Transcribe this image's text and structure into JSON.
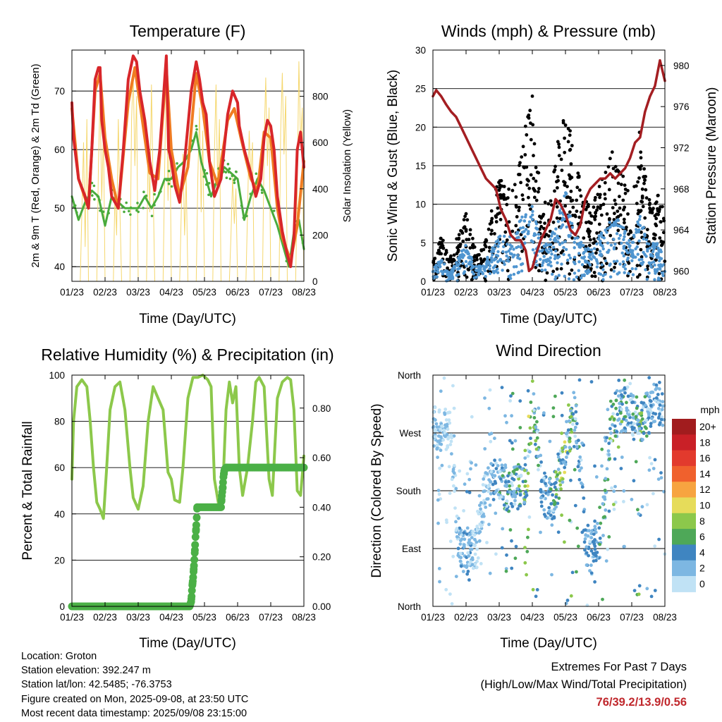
{
  "x_tick_labels": [
    "01/23",
    "02/23",
    "03/23",
    "04/23",
    "05/23",
    "06/23",
    "07/23",
    "08/23"
  ],
  "panels": {
    "temperature": {
      "title": "Temperature (F)",
      "ylabel_left": "2m & 9m T (Red, Orange) & 2m Td (Green)",
      "ylabel_right": "Solar Insolation (Yellow)",
      "xlabel": "Time (Day/UTC)"
    },
    "winds": {
      "title": "Winds (mph) & Pressure (mb)",
      "ylabel_left": "Sonic Wind & Gust (Blue, Black)",
      "ylabel_right": "Station Pressure (Maroon)",
      "xlabel": "Time (Day/UTC)"
    },
    "humidity": {
      "title": "Relative Humidity (%) & Precipitation (in)",
      "ylabel_left": "Percent & Total Rainfall",
      "xlabel": "Time (Day/UTC)"
    },
    "direction": {
      "title": "Wind Direction",
      "ylabel_left": "Direction (Colored By Speed)",
      "xlabel": "Time (Day/UTC)",
      "colorbar_title": "mph",
      "colorbar_labels": [
        "20+",
        "18",
        "16",
        "14",
        "12",
        "10",
        "8",
        "6",
        "4",
        "2",
        "0"
      ]
    }
  },
  "footer": {
    "location": "Location: Groton",
    "elevation": "Station elevation: 392.247 m",
    "latlon": "Station lat/lon: 42.5485; -76.3753",
    "created": "Figure created on Mon, 2025-09-08, at 23:50 UTC",
    "recent": "Most recent data timestamp: 2025/09/08 23:15:00",
    "extremes_title": "Extremes For Past 7 Days",
    "extremes_sub": "(High/Low/Max Wind/Total Precipitation)",
    "extremes_value": "76/39.2/13.9/0.56"
  },
  "colors": {
    "temp_2m": "#d8262a",
    "temp_9m": "#f07c22",
    "dewpoint": "#4aab3c",
    "solar": "#f5d76e",
    "gust": "#000000",
    "wind": "#4f95d0",
    "pressure": "#a41e22",
    "rh": "#8cc84b",
    "precip": "#4bb046",
    "colorbar": [
      "#a11c1e",
      "#c92027",
      "#e23a2d",
      "#f0612d",
      "#f7a440",
      "#e6dc5a",
      "#8cc84b",
      "#4ea858",
      "#3f85c1",
      "#7db7e2",
      "#c0e2f5"
    ]
  },
  "chart_data": [
    {
      "type": "line",
      "title": "Temperature (F)",
      "xlabel": "Time (Day/UTC)",
      "ylabel": "2m & 9m T (Red, Orange) & 2m Td (Green)",
      "ylabel_right": "Solar Insolation (Yellow)",
      "x_range_days": [
        0,
        7
      ],
      "ylim": [
        37.5,
        77
      ],
      "ylim_right": [
        0,
        1000
      ],
      "y_ticks": [
        40,
        50,
        60,
        70
      ],
      "y_ticks_right": [
        0,
        200,
        400,
        600,
        800
      ],
      "series": [
        {
          "name": "2m T",
          "x": [
            0,
            0.05,
            0.2,
            0.4,
            0.5,
            0.6,
            0.7,
            0.8,
            0.85,
            0.9,
            1.0,
            1.1,
            1.2,
            1.4,
            1.55,
            1.7,
            1.85,
            1.95,
            2.05,
            2.2,
            2.35,
            2.5,
            2.65,
            2.75,
            2.85,
            2.92,
            3.0,
            3.1,
            3.25,
            3.4,
            3.6,
            3.75,
            3.85,
            3.95,
            4.05,
            4.15,
            4.3,
            4.5,
            4.7,
            4.85,
            5.0,
            5.05,
            5.2,
            5.4,
            5.55,
            5.7,
            5.8,
            5.9,
            6.0,
            6.1,
            6.2,
            6.35,
            6.5,
            6.6,
            6.7,
            6.8,
            6.9,
            7.0
          ],
          "y": [
            68,
            62,
            55,
            52,
            50,
            60,
            72,
            74,
            74,
            65,
            60,
            57,
            52,
            50,
            60,
            72,
            76,
            75,
            70,
            65,
            58,
            53,
            60,
            68,
            76,
            60,
            58,
            54,
            51,
            58,
            70,
            75,
            72,
            68,
            66,
            58,
            52,
            55,
            66,
            70,
            68,
            64,
            60,
            56,
            52,
            55,
            62,
            65,
            64,
            60,
            52,
            46,
            42,
            40,
            45,
            60,
            63,
            57
          ]
        },
        {
          "name": "9m T",
          "x": [
            0,
            0.2,
            0.5,
            0.7,
            0.85,
            1.0,
            1.2,
            1.4,
            1.7,
            1.9,
            2.1,
            2.35,
            2.6,
            2.85,
            3.0,
            3.25,
            3.5,
            3.75,
            3.95,
            4.15,
            4.4,
            4.7,
            4.9,
            5.1,
            5.4,
            5.6,
            5.8,
            6.0,
            6.2,
            6.35,
            6.6,
            6.8,
            7.0
          ],
          "y": [
            67,
            55,
            50,
            70,
            73,
            62,
            55,
            50,
            68,
            74,
            66,
            56,
            55,
            74,
            60,
            52,
            57,
            73,
            67,
            58,
            54,
            65,
            67,
            62,
            55,
            53,
            63,
            62,
            50,
            45,
            41,
            47,
            58
          ]
        },
        {
          "name": "2m Td",
          "x": [
            0,
            0.1,
            0.2,
            0.4,
            0.6,
            0.8,
            1.0,
            1.2,
            1.4,
            1.6,
            1.8,
            2.0,
            2.2,
            2.4,
            2.6,
            2.8,
            3.0,
            3.2,
            3.4,
            3.6,
            3.75,
            3.9,
            4.0,
            4.2,
            4.4,
            4.6,
            4.8,
            5.0,
            5.2,
            5.4,
            5.6,
            5.8,
            6.0,
            6.2,
            6.4,
            6.55,
            6.7,
            6.85,
            7.0
          ],
          "y": [
            52,
            50,
            48,
            51,
            53,
            52,
            47,
            52,
            51,
            50,
            50,
            50,
            52,
            50,
            52,
            55,
            55,
            57,
            58,
            60,
            63,
            58,
            56,
            52,
            55,
            57,
            56,
            55,
            48,
            52,
            55,
            53,
            50,
            47,
            43,
            40,
            46,
            48,
            43
          ]
        },
        {
          "name": "Solar Insolation",
          "x": [
            0,
            0.25,
            0.3,
            0.35,
            0.4,
            0.45,
            0.5,
            0.75,
            0.8,
            0.85,
            0.9,
            0.95,
            1.0,
            1.25,
            1.3,
            1.35,
            1.4,
            1.45,
            1.5,
            1.75,
            1.8,
            1.85,
            1.9,
            1.95,
            2.0,
            2.25,
            2.3,
            2.35,
            2.4,
            2.45,
            2.5,
            2.75,
            2.8,
            2.85,
            2.9,
            2.95,
            3.0,
            3.25,
            3.3,
            3.35,
            3.4,
            3.45,
            3.5,
            3.75,
            3.8,
            3.85,
            3.9,
            3.95,
            4.0,
            4.25,
            4.3,
            4.35,
            4.4,
            4.45,
            4.5,
            4.75,
            4.8,
            4.85,
            4.9,
            4.95,
            5.0,
            5.25,
            5.3,
            5.35,
            5.4,
            5.45,
            5.5,
            5.75,
            5.8,
            5.85,
            5.9,
            5.95,
            6.0,
            6.25,
            6.3,
            6.35,
            6.4,
            6.45,
            6.5,
            6.75,
            6.8,
            6.85,
            6.9,
            6.95,
            7.0
          ],
          "y": [
            0,
            0,
            300,
            600,
            150,
            700,
            0,
            0,
            500,
            800,
            350,
            650,
            0,
            0,
            400,
            200,
            700,
            300,
            0,
            0,
            700,
            900,
            500,
            800,
            0,
            0,
            600,
            300,
            850,
            400,
            0,
            0,
            500,
            900,
            350,
            750,
            0,
            0,
            300,
            550,
            200,
            450,
            0,
            0,
            450,
            750,
            300,
            650,
            0,
            0,
            550,
            850,
            400,
            700,
            0,
            0,
            200,
            450,
            250,
            400,
            0,
            0,
            300,
            650,
            450,
            600,
            0,
            0,
            600,
            880,
            500,
            750,
            0,
            0,
            650,
            900,
            550,
            800,
            0,
            0,
            400,
            950,
            600,
            750,
            0
          ]
        }
      ]
    },
    {
      "type": "scatter",
      "title": "Winds (mph) & Pressure (mb)",
      "xlabel": "Time (Day/UTC)",
      "ylabel": "Sonic Wind & Gust (Blue, Black)",
      "ylabel_right": "Station Pressure (Maroon)",
      "x_range_days": [
        0,
        7
      ],
      "ylim": [
        0,
        30
      ],
      "ylim_right": [
        959,
        981.5
      ],
      "y_ticks": [
        0,
        5,
        10,
        15,
        20,
        25,
        30
      ],
      "y_ticks_right": [
        960,
        964,
        968,
        972,
        976,
        980
      ],
      "series": [
        {
          "name": "Gust (envelope)",
          "x": [
            0,
            0.25,
            0.5,
            0.75,
            1.0,
            1.25,
            1.5,
            1.75,
            2.0,
            2.25,
            2.5,
            2.75,
            3.0,
            3.25,
            3.5,
            3.75,
            4.0,
            4.25,
            4.5,
            4.75,
            5.0,
            5.25,
            5.5,
            5.75,
            6.0,
            6.25,
            6.5,
            6.75,
            7.0
          ],
          "y": [
            4,
            6,
            3,
            6,
            10,
            5,
            4,
            9,
            14,
            12,
            13,
            20,
            26,
            12,
            10,
            18,
            24,
            17,
            12,
            10,
            12,
            16,
            18,
            14,
            10,
            20,
            11,
            12,
            9
          ]
        },
        {
          "name": "Sonic Wind (envelope)",
          "x": [
            0,
            0.25,
            0.5,
            0.75,
            1.0,
            1.25,
            1.5,
            1.75,
            2.0,
            2.25,
            2.5,
            2.75,
            3.0,
            3.25,
            3.5,
            3.75,
            4.0,
            4.25,
            4.5,
            4.75,
            5.0,
            5.25,
            5.5,
            5.75,
            6.0,
            6.25,
            6.5,
            6.75,
            7.0
          ],
          "y": [
            2,
            3,
            1,
            3,
            5,
            2,
            2,
            4,
            6,
            6,
            7,
            9,
            10,
            5,
            5,
            8,
            12,
            7,
            5,
            4,
            6,
            7,
            9,
            7,
            5,
            9,
            5,
            5,
            4
          ]
        },
        {
          "name": "Station Pressure",
          "x": [
            0,
            0.1,
            0.25,
            0.4,
            0.55,
            0.7,
            0.85,
            1.0,
            1.15,
            1.3,
            1.45,
            1.6,
            1.75,
            1.9,
            2.05,
            2.2,
            2.35,
            2.5,
            2.65,
            2.8,
            2.9,
            3.0,
            3.1,
            3.25,
            3.4,
            3.55,
            3.7,
            3.85,
            4.0,
            4.15,
            4.3,
            4.45,
            4.6,
            4.75,
            4.9,
            5.05,
            5.2,
            5.35,
            5.5,
            5.65,
            5.8,
            5.95,
            6.1,
            6.25,
            6.4,
            6.55,
            6.7,
            6.85,
            7.0
          ],
          "y": [
            977,
            977.6,
            977,
            976.2,
            975.5,
            975,
            974,
            973,
            972,
            971,
            970,
            969,
            968.5,
            968,
            966,
            965,
            963.5,
            963,
            963,
            962,
            960,
            960.3,
            961.5,
            963,
            964,
            965,
            967,
            966.5,
            965.5,
            964,
            963.5,
            964.5,
            967,
            968,
            968.5,
            969,
            969,
            969.5,
            969,
            969.5,
            970,
            971,
            972.5,
            973,
            975.5,
            977,
            978,
            980.5,
            978.5
          ]
        }
      ]
    },
    {
      "type": "line",
      "title": "Relative Humidity (%) & Precipitation (in)",
      "xlabel": "Time (Day/UTC)",
      "ylabel": "Percent & Total Rainfall",
      "x_range_days": [
        0,
        7
      ],
      "ylim": [
        0,
        100
      ],
      "ylim_right": [
        0,
        0.933
      ],
      "y_ticks": [
        0,
        20,
        40,
        60,
        80,
        100
      ],
      "y_ticks_right": [
        0.0,
        0.2,
        0.4,
        0.6,
        0.8
      ],
      "series": [
        {
          "name": "RH",
          "x": [
            0,
            0.05,
            0.15,
            0.3,
            0.45,
            0.55,
            0.65,
            0.75,
            0.85,
            0.95,
            1.05,
            1.15,
            1.3,
            1.45,
            1.6,
            1.75,
            1.85,
            2.0,
            2.15,
            2.3,
            2.45,
            2.6,
            2.75,
            2.9,
            3.0,
            3.1,
            3.25,
            3.35,
            3.5,
            3.65,
            3.8,
            3.95,
            4.1,
            4.2,
            4.3,
            4.45,
            4.55,
            4.65,
            4.75,
            4.85,
            4.95,
            5.05,
            5.15,
            5.3,
            5.45,
            5.55,
            5.65,
            5.8,
            5.95,
            6.05,
            6.2,
            6.35,
            6.5,
            6.6,
            6.7,
            6.8,
            6.9,
            7.0
          ],
          "y": [
            55,
            80,
            95,
            98,
            95,
            80,
            60,
            45,
            42,
            38,
            60,
            85,
            95,
            97,
            85,
            60,
            47,
            42,
            52,
            80,
            95,
            90,
            85,
            58,
            55,
            46,
            45,
            60,
            90,
            99,
            99,
            100,
            98,
            95,
            55,
            42,
            50,
            85,
            97,
            88,
            95,
            60,
            48,
            60,
            80,
            97,
            99,
            95,
            55,
            48,
            90,
            97,
            99,
            98,
            85,
            50,
            48,
            65
          ]
        },
        {
          "name": "Total Precipitation",
          "x": [
            0,
            3.55,
            3.6,
            3.63,
            3.66,
            3.7,
            3.73,
            3.76,
            3.78,
            4.5,
            4.52,
            4.55,
            4.57,
            4.6,
            4.65,
            7.0
          ],
          "y": [
            0,
            0,
            0.02,
            0.08,
            0.12,
            0.2,
            0.28,
            0.34,
            0.4,
            0.4,
            0.44,
            0.48,
            0.52,
            0.55,
            0.56,
            0.56
          ]
        }
      ]
    },
    {
      "type": "scatter",
      "title": "Wind Direction",
      "xlabel": "Time (Day/UTC)",
      "ylabel": "Direction (Colored By Speed)",
      "x_range_days": [
        0,
        7
      ],
      "y_tick_labels": [
        "North",
        "East",
        "South",
        "West",
        "North"
      ],
      "colorbar": {
        "title": "mph",
        "labels": [
          "20+",
          "18",
          "16",
          "14",
          "12",
          "10",
          "8",
          "6",
          "4",
          "2",
          "0"
        ]
      },
      "series": [
        {
          "name": "Direction centerline (deg)",
          "x": [
            0,
            0.5,
            0.8,
            1.0,
            1.3,
            1.6,
            2.0,
            2.3,
            2.6,
            2.85,
            3.0,
            3.3,
            3.6,
            3.85,
            4.0,
            4.3,
            4.6,
            4.8,
            5.1,
            5.4,
            5.6,
            5.9,
            6.2,
            6.5,
            6.8,
            7.0
          ],
          "y": [
            280,
            275,
            90,
            80,
            85,
            190,
            195,
            180,
            185,
            200,
            320,
            180,
            160,
            210,
            250,
            300,
            100,
            95,
            110,
            290,
            300,
            310,
            280,
            300,
            320,
            310
          ]
        }
      ]
    }
  ]
}
